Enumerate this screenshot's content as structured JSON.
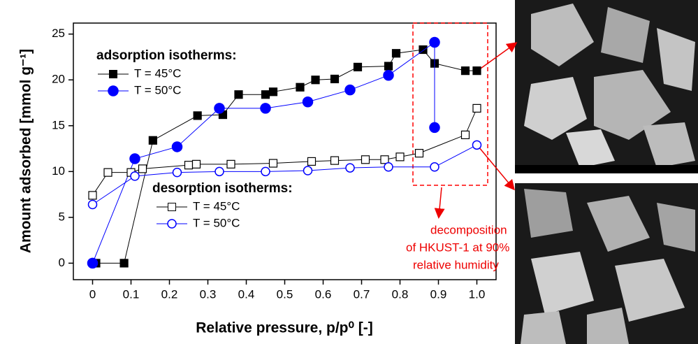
{
  "chart_data": {
    "type": "line",
    "x_label": "Relative pressure, p/p⁰ [-]",
    "y_label": "Amount adsorbed [mmol g⁻¹]",
    "xlim": [
      -0.05,
      1.05
    ],
    "ylim": [
      -1.8,
      26.2
    ],
    "xticks": [
      0,
      0.1,
      0.2,
      0.3,
      0.4,
      0.5,
      0.6,
      0.7,
      0.8,
      0.9,
      {
        "value": 1,
        "label": "1.0"
      }
    ],
    "yticks": [
      0,
      5,
      10,
      15,
      20,
      25
    ],
    "legend_titles": [
      "adsorption isotherms:",
      "desorption isotherms:"
    ],
    "series": [
      {
        "name": "T = 45°C",
        "color": "#000000",
        "marker": "square",
        "filled": true,
        "x": [
          0.009,
          0.082,
          0.157,
          0.273,
          0.339,
          0.38,
          0.45,
          0.47,
          0.54,
          0.58,
          0.63,
          0.69,
          0.77,
          0.79,
          0.86,
          0.89,
          0.97,
          1.0
        ],
        "values": [
          0,
          0,
          13.4,
          16.1,
          16.2,
          18.4,
          18.4,
          18.7,
          19.2,
          20.0,
          20.1,
          21.4,
          21.5,
          22.9,
          23.3,
          21.8,
          21.0,
          21.0
        ]
      },
      {
        "name": "T = 50°C",
        "color": "#0000ff",
        "marker": "circle",
        "filled": true,
        "x": [
          0,
          0.11,
          0.22,
          0.33,
          0.45,
          0.56,
          0.67,
          0.77,
          0.89,
          0.89
        ],
        "values": [
          0,
          11.4,
          12.7,
          16.9,
          16.9,
          17.6,
          18.9,
          20.5,
          24.1,
          14.8
        ]
      },
      {
        "name": "T = 45°C",
        "color": "#000000",
        "marker": "square",
        "filled": false,
        "x": [
          0,
          0.04,
          0.1,
          0.13,
          0.25,
          0.27,
          0.36,
          0.47,
          0.57,
          0.63,
          0.71,
          0.76,
          0.8,
          0.85,
          0.97,
          1.0
        ],
        "values": [
          7.4,
          9.9,
          9.9,
          10.3,
          10.7,
          10.8,
          10.8,
          10.9,
          11.1,
          11.2,
          11.3,
          11.3,
          11.6,
          12.0,
          14.0,
          16.9
        ]
      },
      {
        "name": "T = 50°C",
        "color": "#0000ff",
        "marker": "circle",
        "filled": false,
        "x": [
          0,
          0.11,
          0.22,
          0.33,
          0.45,
          0.56,
          0.67,
          0.77,
          0.89,
          1.0
        ],
        "values": [
          6.4,
          9.5,
          9.9,
          10.0,
          10.0,
          10.1,
          10.4,
          10.5,
          10.5,
          12.9
        ]
      }
    ],
    "annotation": [
      "decomposition",
      "of HKUST-1 at 90%",
      "relative humidity"
    ]
  }
}
